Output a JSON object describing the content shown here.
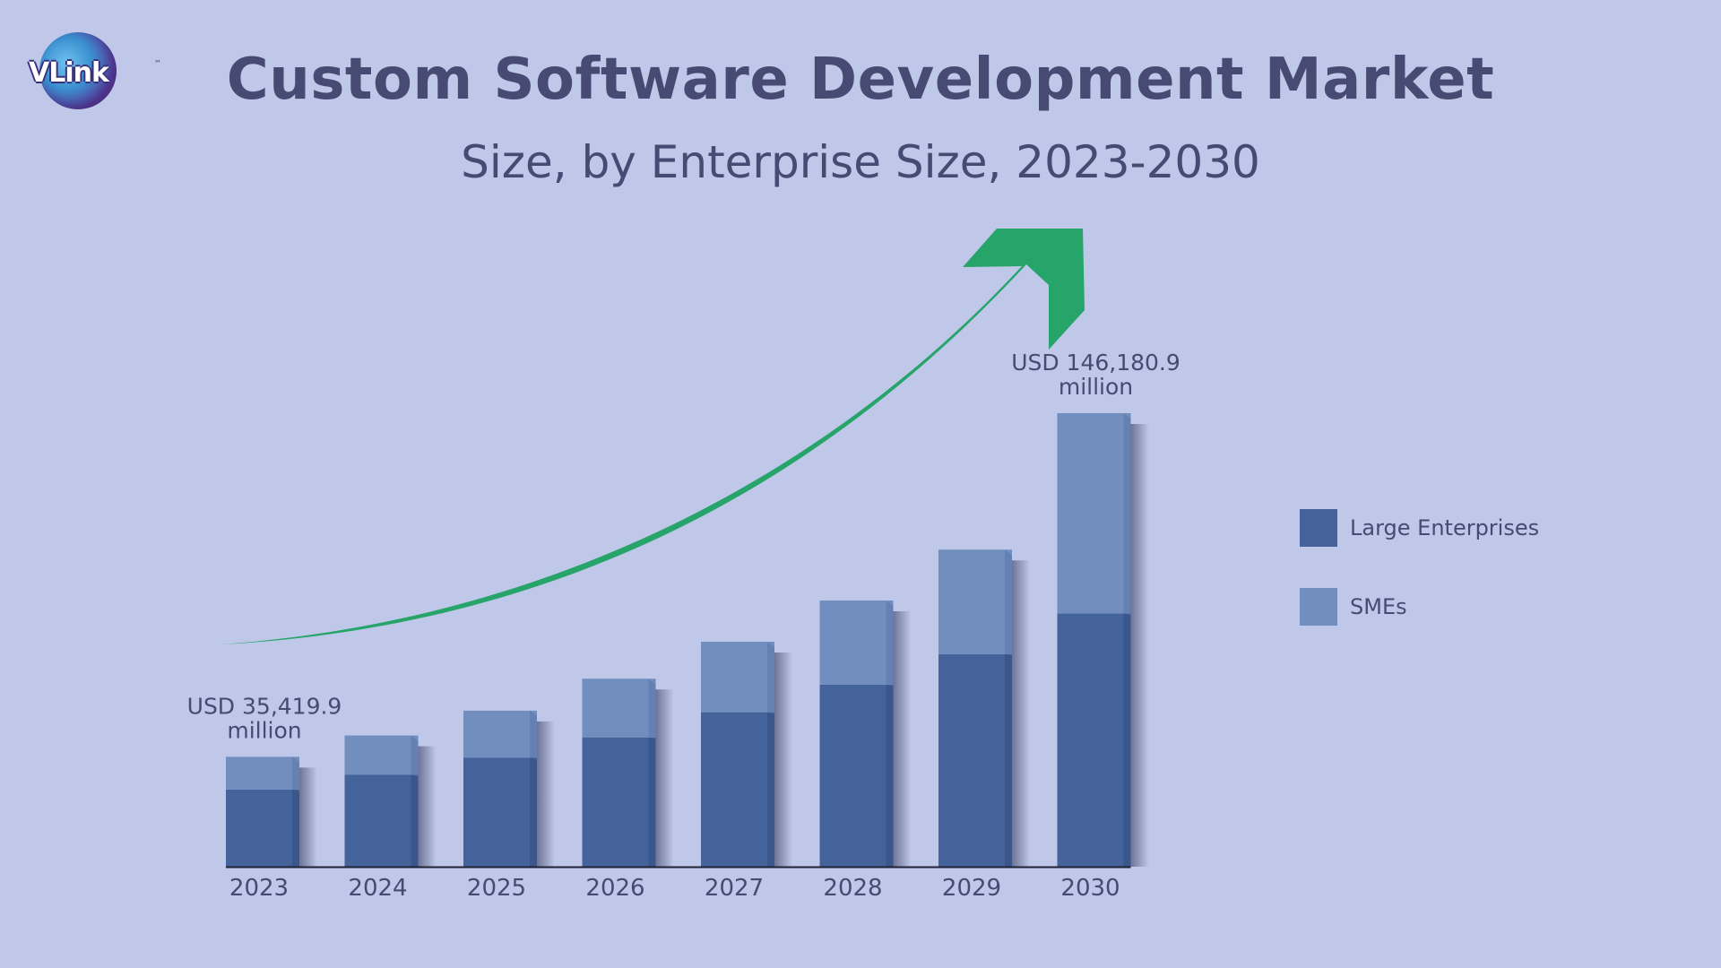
{
  "logo": {
    "text": "VLink",
    "tm": "™"
  },
  "colors": {
    "background": "#bfc8e8",
    "large": "#44639a",
    "sme": "#718ebf",
    "arrow": "#27a46a",
    "axis": "#1f2233",
    "text": "#474a72"
  },
  "chart_data": {
    "type": "bar",
    "stacked": true,
    "title": "Custom Software Development Market",
    "subtitle": "Size, by Enterprise Size, 2023-2030",
    "categories": [
      "2023",
      "2024",
      "2025",
      "2026",
      "2027",
      "2028",
      "2029",
      "2030"
    ],
    "series": [
      {
        "name": "Large Enterprises",
        "values": [
          24900,
          29700,
          35100,
          41700,
          49800,
          58700,
          68500,
          81600
        ]
      },
      {
        "name": "SMEs",
        "values": [
          10519.9,
          12600,
          15200,
          18900,
          22700,
          27100,
          33700,
          64580.9
        ]
      }
    ],
    "annotations": [
      {
        "category": "2023",
        "lines": [
          "USD 35,419.9",
          "million"
        ]
      },
      {
        "category": "2030",
        "lines": [
          "USD 146,180.9",
          "million"
        ]
      }
    ],
    "ylim": [
      0,
      146180.9
    ],
    "xlabel": "",
    "ylabel": "",
    "grid": false,
    "legend_position": "right",
    "trend_arrow": true
  }
}
